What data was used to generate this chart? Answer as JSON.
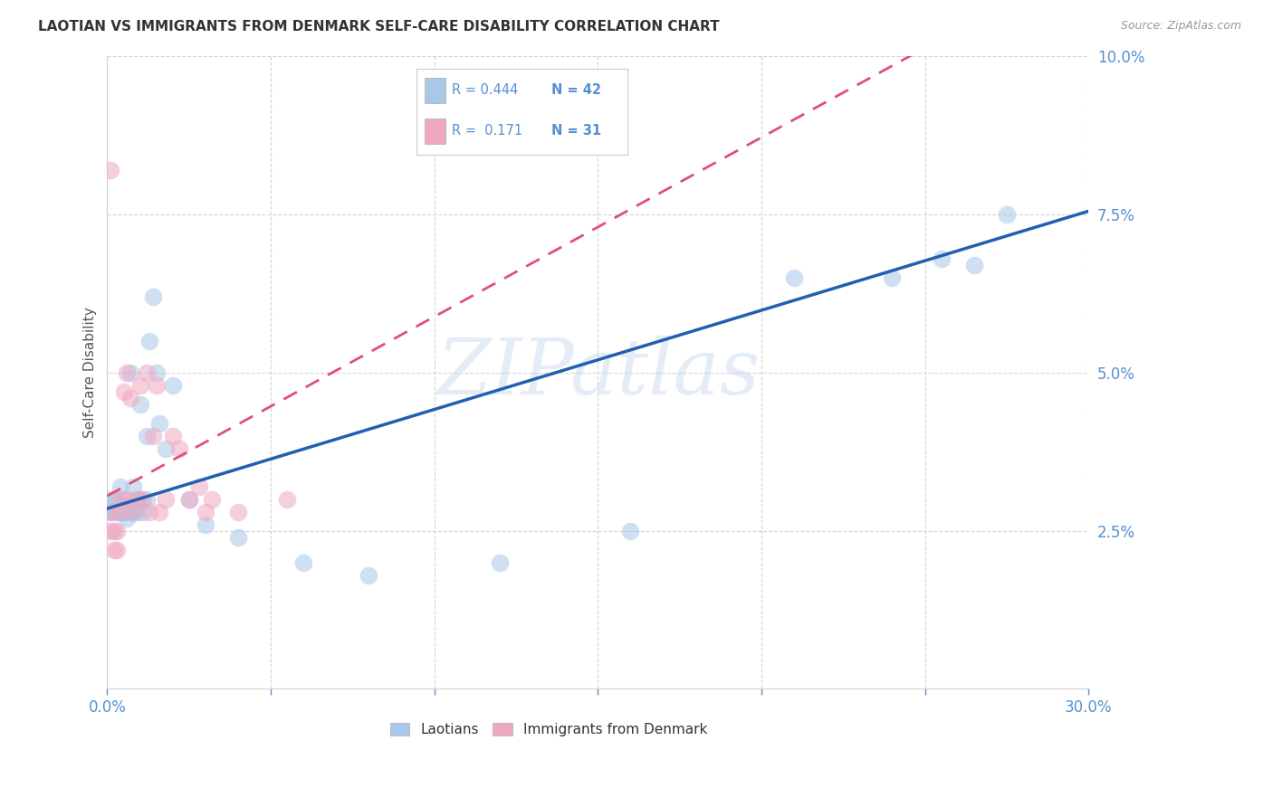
{
  "title": "LAOTIAN VS IMMIGRANTS FROM DENMARK SELF-CARE DISABILITY CORRELATION CHART",
  "source": "Source: ZipAtlas.com",
  "ylabel": "Self-Care Disability",
  "xlim": [
    0,
    0.3
  ],
  "ylim": [
    0,
    0.1
  ],
  "xtick_positions": [
    0.0,
    0.05,
    0.1,
    0.15,
    0.2,
    0.25,
    0.3
  ],
  "xtick_labels": [
    "0.0%",
    "",
    "",
    "",
    "",
    "",
    "30.0%"
  ],
  "ytick_positions": [
    0.0,
    0.025,
    0.05,
    0.075,
    0.1
  ],
  "ytick_labels": [
    "",
    "2.5%",
    "5.0%",
    "7.5%",
    "10.0%"
  ],
  "watermark": "ZIPatlas",
  "blue_color": "#a8c8e8",
  "pink_color": "#f0a8c0",
  "line_blue": "#2060b0",
  "line_pink": "#e05070",
  "title_color": "#333333",
  "axis_label_color": "#555555",
  "tick_color": "#5590d0",
  "grid_color": "#d0d0d0",
  "background_color": "#ffffff",
  "blue_intercept": 0.0285,
  "blue_slope": 0.1567,
  "pink_intercept": 0.0305,
  "pink_slope": 0.2833,
  "laotian_x": [
    0.001,
    0.001,
    0.002,
    0.002,
    0.003,
    0.003,
    0.004,
    0.004,
    0.005,
    0.005,
    0.005,
    0.006,
    0.006,
    0.007,
    0.007,
    0.008,
    0.008,
    0.009,
    0.009,
    0.01,
    0.01,
    0.011,
    0.012,
    0.012,
    0.013,
    0.014,
    0.015,
    0.016,
    0.018,
    0.02,
    0.025,
    0.03,
    0.04,
    0.06,
    0.08,
    0.12,
    0.16,
    0.21,
    0.24,
    0.255,
    0.265,
    0.275
  ],
  "laotian_y": [
    0.028,
    0.03,
    0.028,
    0.03,
    0.028,
    0.03,
    0.028,
    0.032,
    0.028,
    0.03,
    0.028,
    0.029,
    0.027,
    0.028,
    0.05,
    0.028,
    0.032,
    0.03,
    0.028,
    0.03,
    0.045,
    0.028,
    0.03,
    0.04,
    0.055,
    0.062,
    0.05,
    0.042,
    0.038,
    0.048,
    0.03,
    0.026,
    0.024,
    0.02,
    0.018,
    0.02,
    0.025,
    0.065,
    0.065,
    0.068,
    0.067,
    0.075
  ],
  "denmark_x": [
    0.001,
    0.001,
    0.002,
    0.002,
    0.003,
    0.003,
    0.004,
    0.004,
    0.005,
    0.006,
    0.006,
    0.007,
    0.008,
    0.009,
    0.01,
    0.011,
    0.012,
    0.013,
    0.014,
    0.015,
    0.016,
    0.018,
    0.02,
    0.022,
    0.025,
    0.028,
    0.03,
    0.032,
    0.04,
    0.055,
    0.001
  ],
  "denmark_y": [
    0.082,
    0.025,
    0.025,
    0.022,
    0.025,
    0.022,
    0.03,
    0.028,
    0.047,
    0.05,
    0.03,
    0.046,
    0.028,
    0.03,
    0.048,
    0.03,
    0.05,
    0.028,
    0.04,
    0.048,
    0.028,
    0.03,
    0.04,
    0.038,
    0.03,
    0.032,
    0.028,
    0.03,
    0.028,
    0.03,
    0.028
  ]
}
